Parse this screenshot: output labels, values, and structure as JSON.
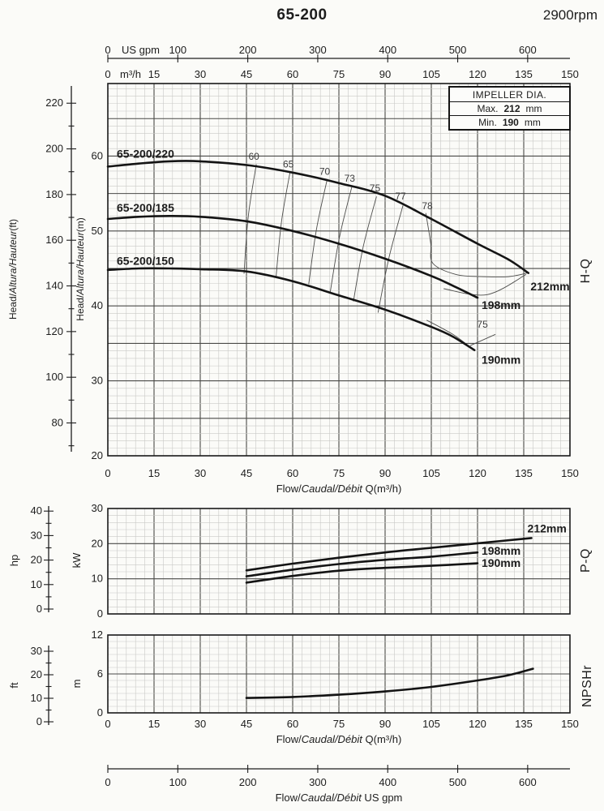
{
  "page": {
    "title": "65-200",
    "rpm": "2900rpm"
  },
  "impeller_box": {
    "header": "IMPELLER DIA.",
    "rows": [
      {
        "label": "Max.",
        "value": "212",
        "unit": "mm"
      },
      {
        "label": "Min.",
        "value": "190",
        "unit": "mm"
      }
    ]
  },
  "top_axis_gpm": {
    "unit_label": "US gpm",
    "ticks": [
      0,
      100,
      200,
      300,
      400,
      500,
      600
    ]
  },
  "top_labels_m3h": {
    "unit_label": "m³/h",
    "ticks": [
      0,
      15,
      30,
      45,
      60,
      75,
      90,
      105,
      120,
      135,
      150
    ]
  },
  "bottom_axis_gpm": {
    "ticks": [
      0,
      100,
      200,
      300,
      400,
      500,
      600
    ],
    "title": {
      "pre": "Flow/",
      "italic": "Caudal/Débit",
      "post": "  US gpm"
    }
  },
  "chart_data": [
    {
      "id": "hq",
      "type": "line",
      "section_label": "H-Q",
      "x": {
        "min": 0,
        "max": 150,
        "minor": 3,
        "major": 15,
        "ticks": [
          0,
          15,
          30,
          45,
          60,
          75,
          90,
          105,
          120,
          135,
          150
        ],
        "title": {
          "pre": "Flow/",
          "italic": "Caudal/Débit",
          "post": " Q(m³/h)"
        }
      },
      "y_m": {
        "min": 20,
        "max": 69.68,
        "labels": [
          20,
          30,
          40,
          50,
          60
        ],
        "title": {
          "pre": "Head/",
          "italic": "Altura/Hauteur",
          "post": "(m)"
        }
      },
      "y_ft": {
        "labels": [
          80,
          100,
          120,
          140,
          160,
          180,
          200,
          220
        ],
        "minor_from": 70,
        "minor_to": 220,
        "minor_step": 10,
        "title": {
          "pre": "Head/",
          "italic": "Altura/Hauteur",
          "post": "(ft)"
        }
      },
      "series": [
        {
          "name": "212mm",
          "model_label": "65-200/220",
          "model_label_pos": [
            2.9,
            59.8
          ],
          "end_label": "212mm",
          "end_label_pos": [
            137.2,
            42.1
          ],
          "points": [
            [
              0,
              58.6
            ],
            [
              10,
              59.0
            ],
            [
              20,
              59.3
            ],
            [
              30,
              59.3
            ],
            [
              45,
              58.8
            ],
            [
              60,
              57.8
            ],
            [
              75,
              56.4
            ],
            [
              90,
              54.7
            ],
            [
              105,
              51.6
            ],
            [
              120,
              48.3
            ],
            [
              130,
              46.2
            ],
            [
              136.5,
              44.4
            ]
          ]
        },
        {
          "name": "198mm",
          "model_label": "65-200/185",
          "model_label_pos": [
            2.9,
            52.6
          ],
          "end_label": "198mm",
          "end_label_pos": [
            121.3,
            39.6
          ],
          "points": [
            [
              0,
              51.6
            ],
            [
              10,
              51.9
            ],
            [
              20,
              52.0
            ],
            [
              30,
              51.9
            ],
            [
              45,
              51.3
            ],
            [
              60,
              50.0
            ],
            [
              75,
              48.3
            ],
            [
              90,
              46.3
            ],
            [
              105,
              44.0
            ],
            [
              112,
              42.7
            ],
            [
              120,
              41.1
            ]
          ]
        },
        {
          "name": "190mm",
          "model_label": "65-200/150",
          "model_label_pos": [
            2.9,
            45.5
          ],
          "end_label": "190mm",
          "end_label_pos": [
            121.3,
            32.3
          ],
          "points": [
            [
              0,
              44.8
            ],
            [
              10,
              45.0
            ],
            [
              20,
              45.0
            ],
            [
              30,
              44.9
            ],
            [
              45,
              44.6
            ],
            [
              60,
              43.3
            ],
            [
              75,
              41.4
            ],
            [
              90,
              39.5
            ],
            [
              105,
              37.2
            ],
            [
              112,
              35.9
            ],
            [
              119,
              34.1
            ]
          ]
        }
      ],
      "efficiency": {
        "lines": [
          {
            "value": "60",
            "points": [
              [
                48.2,
                58.9
              ],
              [
                45.6,
                52.0
              ],
              [
                44.2,
                44.3
              ]
            ]
          },
          {
            "value": "65",
            "points": [
              [
                59.2,
                58.0
              ],
              [
                56.4,
                51.3
              ],
              [
                54.6,
                43.9
              ]
            ]
          },
          {
            "value": "70",
            "points": [
              [
                71.2,
                56.9
              ],
              [
                67.7,
                50.2
              ],
              [
                65.2,
                42.9
              ]
            ]
          },
          {
            "value": "73",
            "points": [
              [
                79.2,
                55.9
              ],
              [
                75.2,
                49.2
              ],
              [
                72.2,
                41.9
              ]
            ]
          },
          {
            "value": "75",
            "points": [
              [
                87.2,
                54.6
              ],
              [
                82.9,
                47.9
              ],
              [
                79.7,
                40.6
              ]
            ]
          },
          {
            "value": "77",
            "points": [
              [
                95.8,
                53.4
              ],
              [
                91.3,
                46.5
              ],
              [
                87.7,
                39.1
              ]
            ]
          },
          {
            "value": "78",
            "points": [
              [
                103.2,
                52.4
              ],
              [
                104.8,
                48.4
              ],
              [
                105.5,
                45.7
              ],
              [
                113,
                44.2
              ],
              [
                122,
                43.9
              ],
              [
                130,
                43.9
              ],
              [
                136.2,
                44.4
              ]
            ]
          },
          {
            "value": "77r",
            "points": [
              [
                109,
                42.3
              ],
              [
                123,
                41.5
              ],
              [
                135.8,
                44.2
              ]
            ]
          },
          {
            "value": "75r",
            "points": [
              [
                103.5,
                38.1
              ],
              [
                112,
                36.2
              ],
              [
                118.9,
                34.1
              ]
            ]
          },
          {
            "value": "75-leader",
            "points": [
              [
                117.6,
                34.7
              ],
              [
                125.8,
                36.2
              ]
            ]
          }
        ],
        "labels": [
          {
            "text": "60",
            "x": 47.4,
            "y": 59.5
          },
          {
            "text": "65",
            "x": 58.6,
            "y": 58.5
          },
          {
            "text": "70",
            "x": 70.4,
            "y": 57.5
          },
          {
            "text": "73",
            "x": 78.5,
            "y": 56.6
          },
          {
            "text": "75",
            "x": 86.7,
            "y": 55.3
          },
          {
            "text": "77",
            "x": 95.0,
            "y": 54.2
          },
          {
            "text": "78",
            "x": 103.7,
            "y": 52.9
          },
          {
            "text": "75",
            "x": 121.6,
            "y": 37.1
          }
        ]
      }
    },
    {
      "id": "pq",
      "type": "line",
      "section_label": "P-Q",
      "y_kw": {
        "min": 0,
        "max": 30,
        "labels": [
          0,
          10,
          20,
          30
        ],
        "unit": "kW"
      },
      "y_hp": {
        "labels": [
          0,
          10,
          20,
          30,
          40
        ],
        "unit": "hp"
      },
      "series": [
        {
          "name": "212mm",
          "end_label": "212mm",
          "end_label_pos": [
            136.2,
            23.2
          ],
          "points": [
            [
              45,
              12.4
            ],
            [
              60,
              14.3
            ],
            [
              75,
              16.0
            ],
            [
              90,
              17.5
            ],
            [
              105,
              18.8
            ],
            [
              120,
              20.1
            ],
            [
              137.5,
              21.6
            ]
          ]
        },
        {
          "name": "198mm",
          "end_label": "198mm",
          "end_label_pos": [
            121.3,
            16.8
          ],
          "points": [
            [
              45,
              10.7
            ],
            [
              60,
              12.6
            ],
            [
              75,
              14.2
            ],
            [
              90,
              15.4
            ],
            [
              105,
              16.3
            ],
            [
              120,
              17.5
            ]
          ]
        },
        {
          "name": "190mm",
          "end_label": "190mm",
          "end_label_pos": [
            121.3,
            13.4
          ],
          "points": [
            [
              45,
              8.9
            ],
            [
              60,
              10.8
            ],
            [
              75,
              12.3
            ],
            [
              90,
              13.1
            ],
            [
              105,
              13.7
            ],
            [
              120,
              14.4
            ]
          ]
        }
      ]
    },
    {
      "id": "npsh",
      "type": "line",
      "section_label": "NPSHr",
      "x": {
        "ticks": [
          0,
          15,
          30,
          45,
          60,
          75,
          90,
          105,
          120,
          135,
          150
        ],
        "title": {
          "pre": "Flow/",
          "italic": "Caudal/Débit",
          "post": " Q(m³/h)"
        }
      },
      "y_m": {
        "min": 0,
        "max": 12,
        "labels": [
          0,
          6,
          12
        ],
        "unit": "m"
      },
      "y_ft": {
        "labels": [
          0,
          10,
          20,
          30
        ],
        "unit": "ft"
      },
      "series": [
        {
          "name": "npshr",
          "points": [
            [
              45,
              2.3
            ],
            [
              60,
              2.45
            ],
            [
              75,
              2.8
            ],
            [
              90,
              3.3
            ],
            [
              105,
              4.0
            ],
            [
              120,
              5.0
            ],
            [
              130,
              5.8
            ],
            [
              138,
              6.8
            ]
          ]
        }
      ]
    }
  ]
}
